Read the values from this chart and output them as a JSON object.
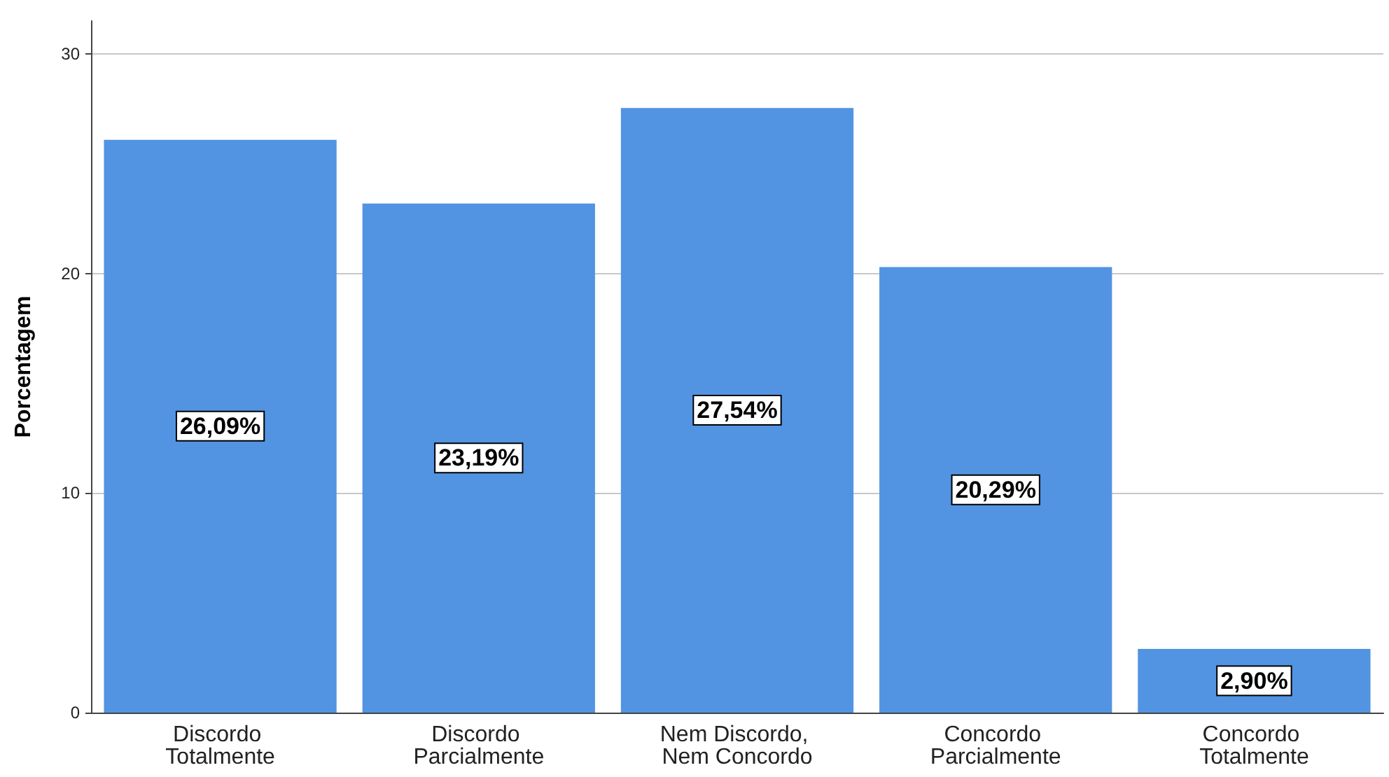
{
  "chart_data": {
    "type": "bar",
    "ylabel": "Porcentagem",
    "categories": [
      "Discordo Totalmente",
      "Discordo Parcialmente",
      "Nem Discordo, Nem Concordo",
      "Concordo Parcialmente",
      "Concordo Totalmente"
    ],
    "values": [
      26.09,
      23.19,
      27.54,
      20.29,
      2.9
    ],
    "value_labels": [
      "26,09%",
      "23,19%",
      "27,54%",
      "20,29%",
      "2,90%"
    ],
    "color": "#5294e2",
    "ylim": [
      0,
      31.5
    ],
    "yticks": [
      0,
      10,
      20,
      30
    ],
    "grid": "y"
  }
}
